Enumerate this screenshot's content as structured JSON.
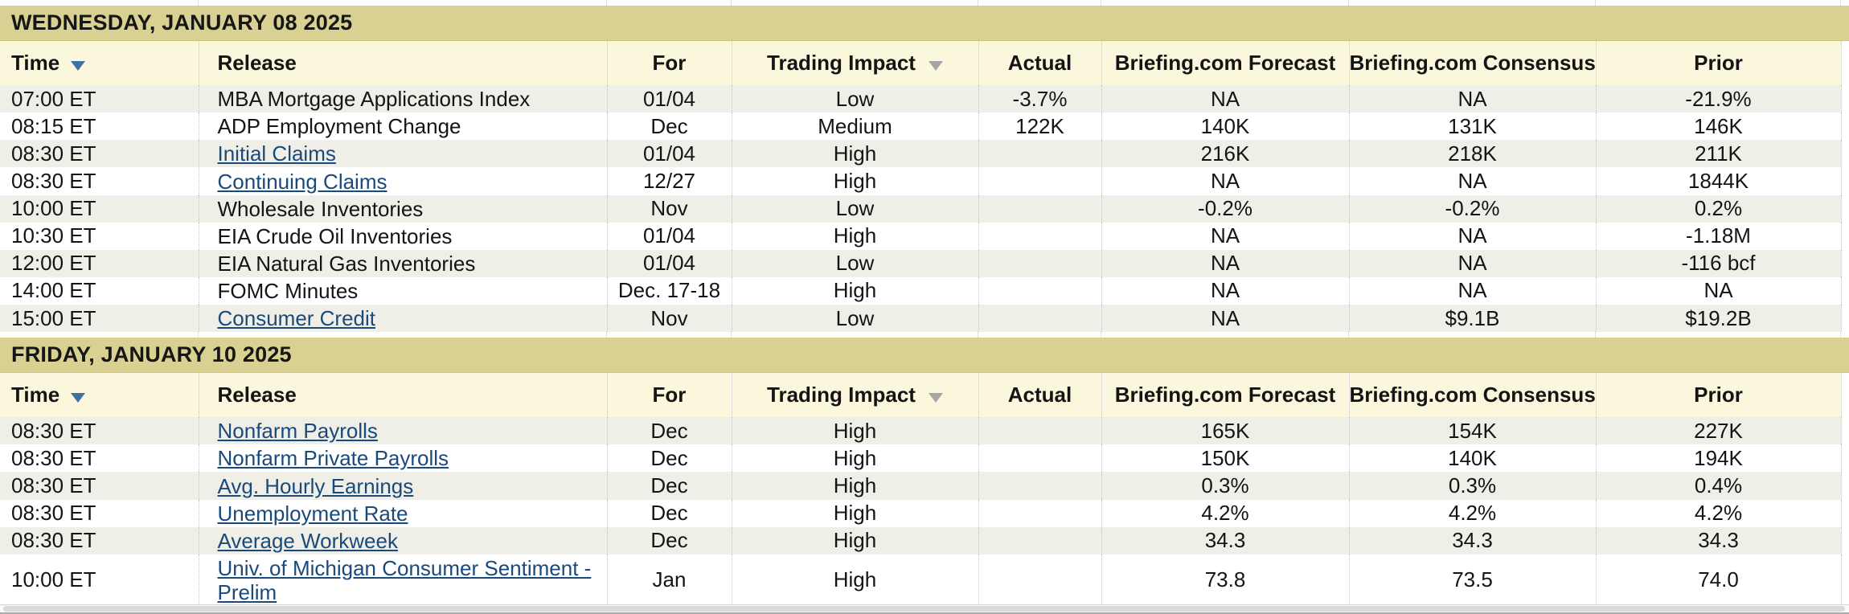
{
  "theme": {
    "daybar-bg": "#d8d192",
    "header-bg": "#fbf7dd",
    "row-alt-bg": "#efefe8",
    "row-bg": "#ffffff",
    "link-color": "#1a4a7c",
    "text-color": "#151515",
    "border-color": "#c3c3c3",
    "sort-active-color": "#3f72a0",
    "sort-inactive-color": "#a6a6a6",
    "scrollbar-thumb": "#d9d9d9"
  },
  "icons": {
    "time_sort": "sort-desc-triangle-blue",
    "trading_impact_sort": "sort-desc-triangle-gray"
  },
  "table": {
    "columns": [
      {
        "label": "Time",
        "sortable": true
      },
      {
        "label": "Release",
        "sortable": false
      },
      {
        "label": "For",
        "sortable": false
      },
      {
        "label": "Trading Impact",
        "sortable": true
      },
      {
        "label": "Actual",
        "sortable": false
      },
      {
        "label": "Briefing.com Forecast",
        "sortable": false
      },
      {
        "label": "Briefing.com Consensus",
        "sortable": false
      },
      {
        "label": "Prior",
        "sortable": false
      }
    ],
    "sections": [
      {
        "date": "WEDNESDAY, JANUARY 08 2025",
        "rows": [
          {
            "time": "07:00 ET",
            "release": "MBA Mortgage Applications Index",
            "link": false,
            "for": "01/04",
            "impact": "Low",
            "actual": "-3.7%",
            "forecast": "NA",
            "consensus": "NA",
            "prior": "-21.9%"
          },
          {
            "time": "08:15 ET",
            "release": "ADP Employment Change",
            "link": false,
            "for": "Dec",
            "impact": "Medium",
            "actual": "122K",
            "forecast": "140K",
            "consensus": "131K",
            "prior": "146K"
          },
          {
            "time": "08:30 ET",
            "release": "Initial Claims",
            "link": true,
            "for": "01/04",
            "impact": "High",
            "actual": "",
            "forecast": "216K",
            "consensus": "218K",
            "prior": "211K"
          },
          {
            "time": "08:30 ET",
            "release": "Continuing Claims",
            "link": true,
            "for": "12/27",
            "impact": "High",
            "actual": "",
            "forecast": "NA",
            "consensus": "NA",
            "prior": "1844K"
          },
          {
            "time": "10:00 ET",
            "release": "Wholesale Inventories",
            "link": false,
            "for": "Nov",
            "impact": "Low",
            "actual": "",
            "forecast": "-0.2%",
            "consensus": "-0.2%",
            "prior": "0.2%"
          },
          {
            "time": "10:30 ET",
            "release": "EIA Crude Oil Inventories",
            "link": false,
            "for": "01/04",
            "impact": "High",
            "actual": "",
            "forecast": "NA",
            "consensus": "NA",
            "prior": "-1.18M"
          },
          {
            "time": "12:00 ET",
            "release": "EIA Natural Gas Inventories",
            "link": false,
            "for": "01/04",
            "impact": "Low",
            "actual": "",
            "forecast": "NA",
            "consensus": "NA",
            "prior": "-116 bcf"
          },
          {
            "time": "14:00 ET",
            "release": "FOMC Minutes",
            "link": false,
            "for": "Dec. 17-18",
            "impact": "High",
            "actual": "",
            "forecast": "NA",
            "consensus": "NA",
            "prior": "NA"
          },
          {
            "time": "15:00 ET",
            "release": "Consumer Credit",
            "link": true,
            "for": "Nov",
            "impact": "Low",
            "actual": "",
            "forecast": "NA",
            "consensus": "$9.1B",
            "prior": "$19.2B"
          }
        ]
      },
      {
        "date": "FRIDAY, JANUARY 10 2025",
        "rows": [
          {
            "time": "08:30 ET",
            "release": "Nonfarm Payrolls",
            "link": true,
            "for": "Dec",
            "impact": "High",
            "actual": "",
            "forecast": "165K",
            "consensus": "154K",
            "prior": "227K"
          },
          {
            "time": "08:30 ET",
            "release": "Nonfarm Private Payrolls",
            "link": true,
            "for": "Dec",
            "impact": "High",
            "actual": "",
            "forecast": "150K",
            "consensus": "140K",
            "prior": "194K"
          },
          {
            "time": "08:30 ET",
            "release": "Avg. Hourly Earnings",
            "link": true,
            "for": "Dec",
            "impact": "High",
            "actual": "",
            "forecast": "0.3%",
            "consensus": "0.3%",
            "prior": "0.4%"
          },
          {
            "time": "08:30 ET",
            "release": "Unemployment Rate",
            "link": true,
            "for": "Dec",
            "impact": "High",
            "actual": "",
            "forecast": "4.2%",
            "consensus": "4.2%",
            "prior": "4.2%"
          },
          {
            "time": "08:30 ET",
            "release": "Average Workweek",
            "link": true,
            "for": "Dec",
            "impact": "High",
            "actual": "",
            "forecast": "34.3",
            "consensus": "34.3",
            "prior": "34.3"
          },
          {
            "time": "10:00 ET",
            "release": "Univ. of Michigan Consumer Sentiment - Prelim",
            "link": true,
            "for": "Jan",
            "impact": "High",
            "actual": "",
            "forecast": "73.8",
            "consensus": "73.5",
            "prior": "74.0"
          }
        ]
      }
    ]
  }
}
